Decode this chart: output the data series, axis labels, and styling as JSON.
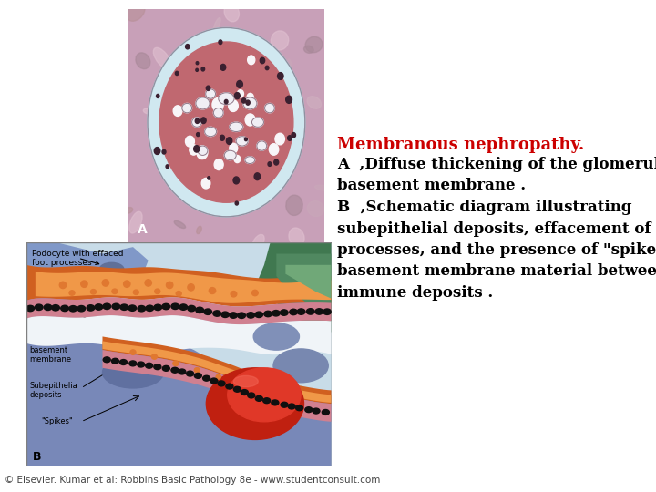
{
  "background_color": "#ffffff",
  "title_text": "Membranous nephropathy.",
  "title_color": "#cc0000",
  "title_fontsize": 13,
  "body_text": "A  ,Diffuse thickening of the glomerular\nbasement membrane .\nB  ,Schematic diagram illustrating\nsubepithelial deposits, effacement of foot\nprocesses, and the presence of \"spikes\" of\nbasement membrane material between the\nimmune deposits .",
  "body_fontsize": 12,
  "body_color": "#000000",
  "footer_text": "© Elsevier. Kumar et al: Robbins Basic Pathology 8e - www.studentconsult.com",
  "footer_fontsize": 7.5,
  "footer_color": "#444444",
  "fig_width": 7.2,
  "fig_height": 5.4,
  "histo_bg": "#c8a0b0",
  "histo_outer_ring": "#c8b8c0",
  "histo_bowman_space": "#d0e8f0",
  "histo_tuft": "#c06878",
  "histo_nuclei": "#3a2030",
  "schematic_bg": "#c8dce8",
  "schematic_blue_pod": "#8098c8",
  "schematic_blue_light": "#a8c0d8",
  "schematic_green_dark": "#407850",
  "schematic_green_mid": "#508860",
  "schematic_green_light": "#70a878",
  "schematic_orange_dark": "#d06020",
  "schematic_orange_mid": "#e07830",
  "schematic_orange_light": "#f09848",
  "schematic_red_dark": "#c02010",
  "schematic_red_mid": "#d83020",
  "schematic_bm_color": "#c05060",
  "schematic_black_dot": "#101010",
  "schematic_white_lumen": "#f8f8f8",
  "schematic_pink_bm": "#d08090"
}
